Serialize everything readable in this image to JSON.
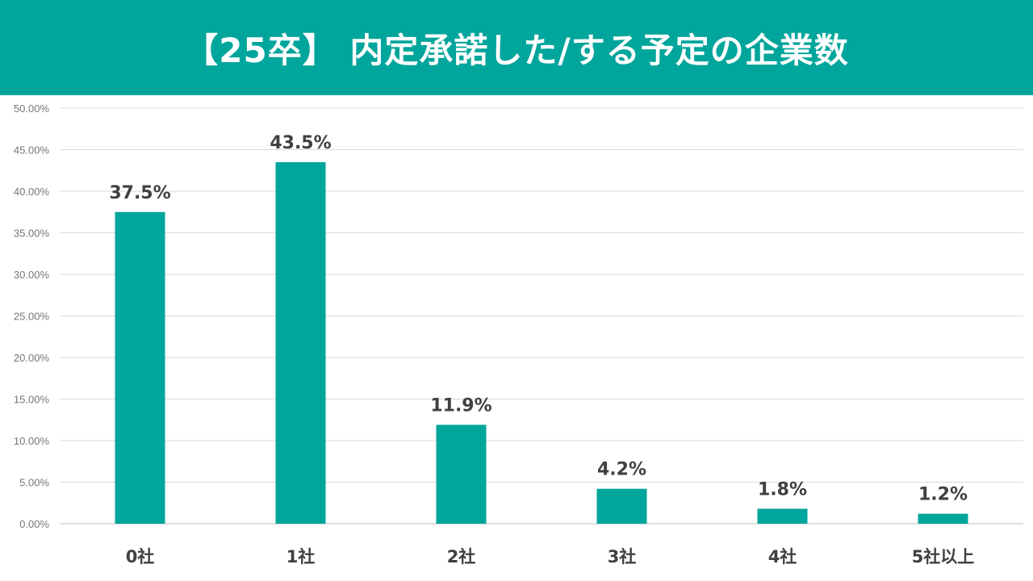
{
  "colors": {
    "accent": "#00a59b",
    "bar": "#00a59b",
    "grid": "#d9d9d9",
    "text": "#404040"
  },
  "chart_data": {
    "type": "bar",
    "title": "【25卒】 内定承諾した/する予定の企業数",
    "categories": [
      "0社",
      "1社",
      "2社",
      "3社",
      "4社",
      "5社以上"
    ],
    "values": [
      37.5,
      43.5,
      11.9,
      4.2,
      1.8,
      1.2
    ],
    "data_labels": [
      "37.5%",
      "43.5%",
      "11.9%",
      "4.2%",
      "1.8%",
      "1.2%"
    ],
    "yticks": [
      "0.00%",
      "5.00%",
      "10.00%",
      "15.00%",
      "20.00%",
      "25.00%",
      "30.00%",
      "35.00%",
      "40.00%",
      "45.00%",
      "50.00%"
    ],
    "ylim": [
      0,
      50
    ],
    "xlabel": "",
    "ylabel": "",
    "grid": true,
    "legend": "none"
  }
}
